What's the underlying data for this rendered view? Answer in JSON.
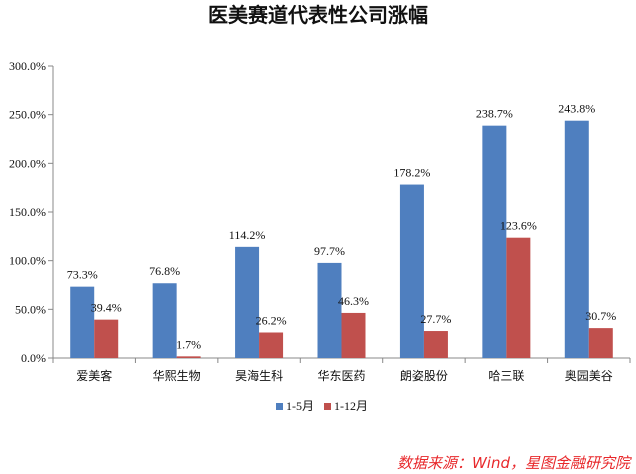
{
  "chart_data": {
    "type": "bar",
    "title": "医美赛道代表性公司涨幅",
    "xlabel": "",
    "ylabel": "",
    "categories": [
      "爱美客",
      "华熙生物",
      "昊海生科",
      "华东医药",
      "朗姿股份",
      "哈三联",
      "奥园美谷"
    ],
    "series": [
      {
        "name": "1-5月",
        "color": "#4f7fbf",
        "values": [
          73.3,
          76.8,
          114.2,
          97.7,
          178.2,
          238.7,
          243.8
        ],
        "labels": [
          "73.3%",
          "76.8%",
          "114.2%",
          "97.7%",
          "178.2%",
          "238.7%",
          "243.8%"
        ]
      },
      {
        "name": "1-12月",
        "color": "#c0504d",
        "values": [
          39.4,
          1.7,
          26.2,
          46.3,
          27.7,
          123.6,
          30.7
        ],
        "labels": [
          "39.4%",
          "1.7%",
          "26.2%",
          "46.3%",
          "27.7%",
          "123.6%",
          "30.7%"
        ]
      }
    ],
    "ylim": [
      0,
      300
    ],
    "yticks": [
      0,
      50,
      100,
      150,
      200,
      250,
      300
    ],
    "ytick_labels": [
      "0.0%",
      "50.0%",
      "100.0%",
      "150.0%",
      "200.0%",
      "250.0%",
      "300.0%"
    ],
    "grid": false,
    "legend_position": "bottom",
    "source": "数据来源：Wind，星图金融研究院"
  }
}
